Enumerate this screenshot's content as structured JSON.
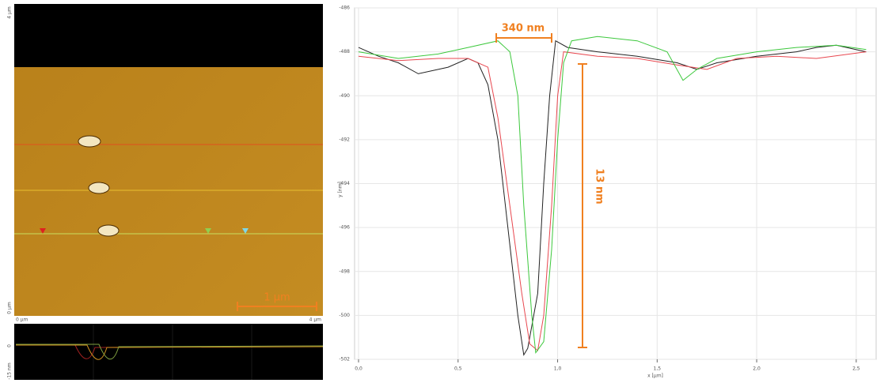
{
  "afm_image": {
    "y_top": "4 µm",
    "y_bottom": "0 µm",
    "x_left": "0 µm",
    "x_right": "4 µm",
    "scale_bar": "1 µm",
    "profile_y_top": "0",
    "profile_y_bottom": "-15 nm"
  },
  "chart_data": {
    "type": "line",
    "y_label": "y [nm]",
    "x_label": "x [µm]",
    "annotations": [
      "340 nm",
      "13 nm"
    ],
    "xlim": [
      -0.02,
      2.6
    ],
    "ylim": [
      -502,
      -486
    ],
    "xticks": [
      {
        "value": 0,
        "label": "0,0"
      },
      {
        "value": 0.5,
        "label": "0,5"
      },
      {
        "value": 1,
        "label": "1,0"
      },
      {
        "value": 1.5,
        "label": "1,5"
      },
      {
        "value": 2,
        "label": "2,0"
      },
      {
        "value": 2.5,
        "label": "2,5"
      }
    ],
    "yticks": [
      -486,
      -488,
      -490,
      -492,
      -494,
      -496,
      -498,
      -500,
      -502
    ],
    "grid": true,
    "series": [
      {
        "color": "#222222",
        "x": [
          0,
          0.1,
          0.2,
          0.3,
          0.45,
          0.55,
          0.6,
          0.65,
          0.7,
          0.75,
          0.8,
          0.83,
          0.85,
          0.9,
          0.93,
          0.96,
          0.99,
          1.05,
          1.2,
          1.4,
          1.6,
          1.7,
          1.8,
          2.0,
          2.2,
          2.3,
          2.4,
          2.55
        ],
        "values": [
          -487.8,
          -488.2,
          -488.5,
          -489,
          -488.7,
          -488.3,
          -488.5,
          -489.5,
          -492,
          -496,
          -500,
          -501.8,
          -501.5,
          -499,
          -494,
          -490,
          -487.5,
          -487.8,
          -488,
          -488.2,
          -488.5,
          -488.8,
          -488.5,
          -488.2,
          -488,
          -487.8,
          -487.7,
          -488
        ]
      },
      {
        "color": "#e8474f",
        "x": [
          0,
          0.2,
          0.4,
          0.55,
          0.65,
          0.7,
          0.76,
          0.82,
          0.86,
          0.9,
          0.93,
          0.97,
          1.0,
          1.03,
          1.2,
          1.4,
          1.6,
          1.75,
          1.9,
          2.1,
          2.3,
          2.55
        ],
        "values": [
          -488.2,
          -488.4,
          -488.3,
          -488.3,
          -488.7,
          -491,
          -495,
          -499,
          -501.3,
          -501.6,
          -500,
          -495,
          -490,
          -488,
          -488.2,
          -488.3,
          -488.6,
          -488.8,
          -488.3,
          -488.2,
          -488.3,
          -488
        ]
      },
      {
        "color": "#3cc83c",
        "x": [
          0,
          0.2,
          0.4,
          0.55,
          0.7,
          0.76,
          0.8,
          0.83,
          0.87,
          0.89,
          0.93,
          0.97,
          1.0,
          1.03,
          1.07,
          1.2,
          1.4,
          1.55,
          1.63,
          1.7,
          1.8,
          2.0,
          2.2,
          2.4,
          2.55
        ],
        "values": [
          -488,
          -488.3,
          -488.1,
          -487.8,
          -487.5,
          -488,
          -490,
          -495,
          -500,
          -501.7,
          -501.2,
          -497,
          -492,
          -488.5,
          -487.5,
          -487.3,
          -487.5,
          -488,
          -489.3,
          -488.8,
          -488.3,
          -488,
          -487.8,
          -487.7,
          -487.9
        ]
      }
    ]
  }
}
